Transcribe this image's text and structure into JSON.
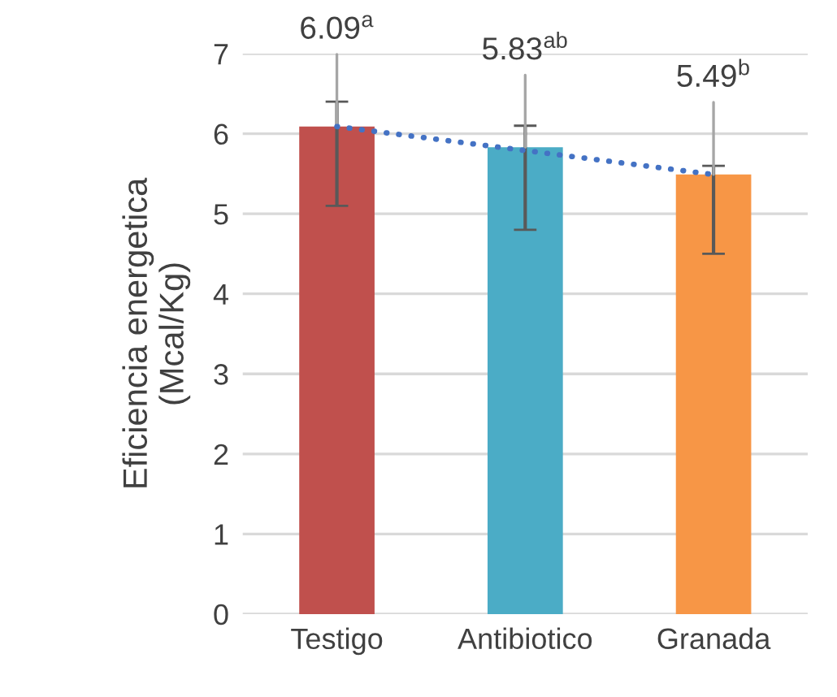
{
  "chart_data": {
    "type": "bar",
    "ylabel": "Eficiencia energetica\n(Mcal/Kg)",
    "categories": [
      "Testigo",
      "Antibiotico",
      "Granada"
    ],
    "series": [
      {
        "values": [
          6.09,
          5.83,
          5.49
        ],
        "colors": [
          "#c0504d",
          "#4bacc6",
          "#f79646"
        ],
        "errors": [
          [
            5.1,
            6.4
          ],
          [
            4.8,
            6.1
          ],
          [
            4.5,
            5.6
          ]
        ],
        "value_labels": [
          "6.09$^{a}$",
          "5.83$^{ab}$",
          "5.49$^{b}$"
        ]
      },
      {
        "type": "line",
        "color": "#4472c4",
        "line_style": "dotted",
        "values": [
          6.09,
          5.79,
          5.49
        ]
      }
    ],
    "ylim": [
      0,
      7
    ],
    "yticks": [
      0,
      1,
      2,
      3,
      4,
      5,
      6,
      7
    ],
    "grid": "y"
  }
}
